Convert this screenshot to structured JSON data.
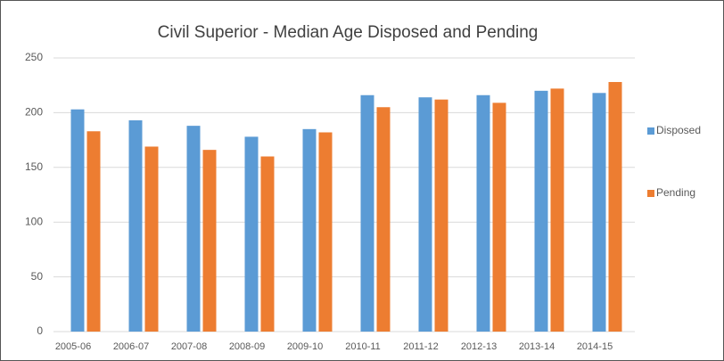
{
  "chart_data": {
    "type": "bar",
    "title": "Civil Superior - Median Age Disposed and Pending",
    "categories": [
      "2005-06",
      "2006-07",
      "2007-08",
      "2008-09",
      "2009-10",
      "2010-11",
      "2011-12",
      "2012-13",
      "2013-14",
      "2014-15"
    ],
    "series": [
      {
        "name": "Disposed",
        "color": "#5b9bd5",
        "values": [
          203,
          193,
          188,
          178,
          185,
          216,
          214,
          216,
          220,
          218
        ]
      },
      {
        "name": "Pending",
        "color": "#ed7d31",
        "values": [
          183,
          169,
          166,
          160,
          182,
          205,
          212,
          209,
          222,
          228
        ]
      }
    ],
    "ylim": [
      0,
      250
    ],
    "yticks": [
      0,
      50,
      100,
      150,
      200,
      250
    ],
    "grid": true,
    "legend": "right"
  }
}
